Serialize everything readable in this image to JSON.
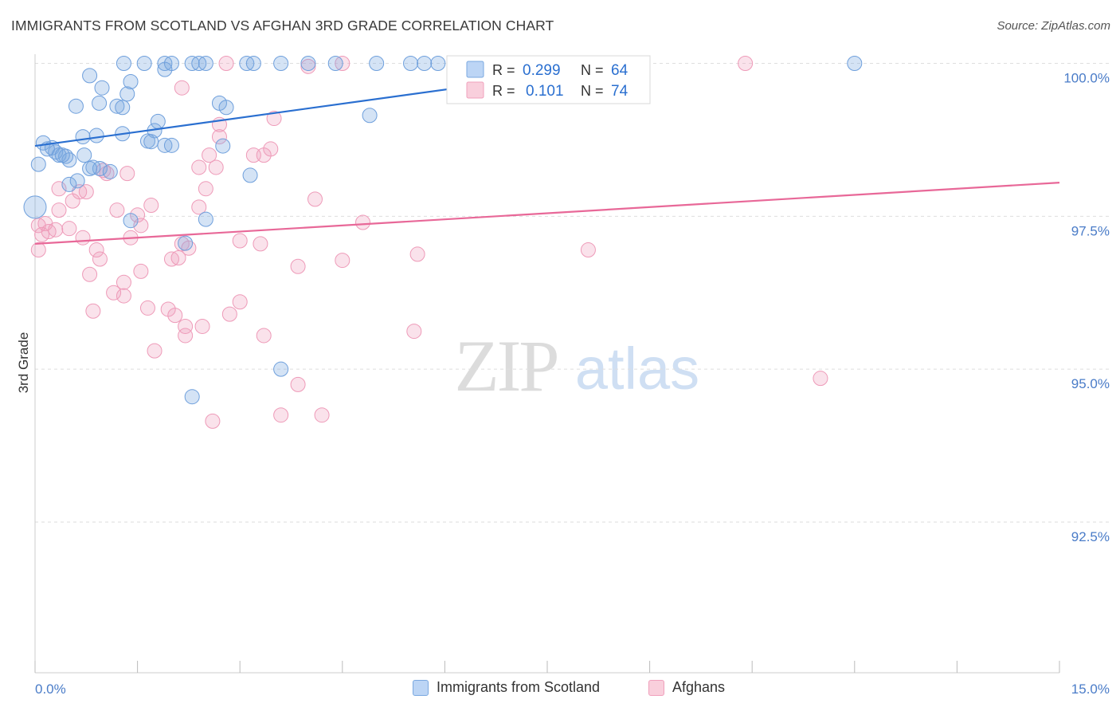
{
  "title": "IMMIGRANTS FROM SCOTLAND VS AFGHAN 3RD GRADE CORRELATION CHART",
  "source": "Source: ZipAtlas.com",
  "watermark": {
    "zip": "ZIP",
    "atlas": "atlas"
  },
  "chart_data": {
    "type": "scatter",
    "title": "IMMIGRANTS FROM SCOTLAND VS AFGHAN 3RD GRADE CORRELATION CHART",
    "xlabel": "",
    "ylabel": "3rd Grade",
    "xlim": [
      0.0,
      15.0
    ],
    "ylim": [
      90.25,
      100.45
    ],
    "x_tick_labels": [
      "0.0%",
      "15.0%"
    ],
    "y_ticks": [
      92.5,
      95.0,
      97.5,
      100.0
    ],
    "y_tick_labels": [
      "92.5%",
      "95.0%",
      "97.5%",
      "100.0%"
    ],
    "grid": true,
    "legend_position": "top-center",
    "colors": {
      "scotland": "#7aa8e0",
      "afghans": "#f0a0bc",
      "scotland_line": "#2a6fd0",
      "afghans_line": "#e86898",
      "stat_value": "#2a6fd0"
    },
    "stats": [
      {
        "r_label": "R =",
        "r_value": "0.299",
        "n_label": "N =",
        "n_value": "64"
      },
      {
        "r_label": "R =",
        "r_value": "0.101",
        "n_label": "N =",
        "n_value": "74"
      }
    ],
    "series": [
      {
        "name": "Immigrants from Scotland",
        "trend": {
          "x": [
            0.0,
            8.8
          ],
          "y": [
            98.65,
            100.0
          ]
        },
        "points": [
          [
            1.3,
            100.0
          ],
          [
            1.6,
            100.0
          ],
          [
            1.9,
            100.0
          ],
          [
            2.0,
            100.0
          ],
          [
            2.3,
            100.0
          ],
          [
            2.4,
            100.0
          ],
          [
            2.5,
            100.0
          ],
          [
            3.1,
            100.0
          ],
          [
            3.2,
            100.0
          ],
          [
            3.6,
            100.0
          ],
          [
            4.0,
            100.0
          ],
          [
            4.4,
            100.0
          ],
          [
            5.0,
            100.0
          ],
          [
            5.5,
            100.0
          ],
          [
            5.7,
            100.0
          ],
          [
            5.9,
            100.0
          ],
          [
            12.0,
            100.0
          ],
          [
            8.8,
            100.0
          ],
          [
            8.4,
            100.0
          ],
          [
            1.9,
            99.9
          ],
          [
            1.4,
            99.7
          ],
          [
            0.8,
            99.8
          ],
          [
            0.98,
            99.6
          ],
          [
            1.35,
            99.5
          ],
          [
            0.6,
            99.3
          ],
          [
            0.94,
            99.35
          ],
          [
            1.2,
            99.3
          ],
          [
            1.28,
            99.28
          ],
          [
            2.7,
            99.35
          ],
          [
            2.8,
            99.28
          ],
          [
            4.9,
            99.15
          ],
          [
            1.8,
            99.05
          ],
          [
            1.75,
            98.9
          ],
          [
            1.28,
            98.85
          ],
          [
            0.7,
            98.8
          ],
          [
            0.9,
            98.82
          ],
          [
            1.65,
            98.73
          ],
          [
            1.7,
            98.72
          ],
          [
            1.9,
            98.66
          ],
          [
            2.0,
            98.66
          ],
          [
            2.75,
            98.65
          ],
          [
            0.12,
            98.7
          ],
          [
            0.25,
            98.62
          ],
          [
            0.3,
            98.55
          ],
          [
            0.35,
            98.5
          ],
          [
            0.45,
            98.48
          ],
          [
            0.5,
            98.42
          ],
          [
            0.72,
            98.5
          ],
          [
            0.85,
            98.3
          ],
          [
            0.95,
            98.28
          ],
          [
            1.1,
            98.23
          ],
          [
            0.05,
            98.35
          ],
          [
            0.62,
            98.08
          ],
          [
            0.5,
            98.02
          ],
          [
            3.15,
            98.17
          ],
          [
            0.0,
            97.65
          ],
          [
            2.5,
            97.45
          ],
          [
            1.4,
            97.43
          ],
          [
            2.2,
            97.06
          ],
          [
            3.6,
            95.0
          ],
          [
            2.3,
            94.55
          ],
          [
            0.18,
            98.6
          ],
          [
            0.8,
            98.28
          ],
          [
            0.4,
            98.5
          ]
        ]
      },
      {
        "name": "Afghans",
        "trend": {
          "x": [
            0.0,
            15.0
          ],
          "y": [
            97.05,
            98.05
          ]
        },
        "points": [
          [
            2.8,
            100.0
          ],
          [
            4.0,
            99.95
          ],
          [
            4.5,
            100.0
          ],
          [
            8.8,
            100.0
          ],
          [
            10.4,
            100.0
          ],
          [
            2.15,
            99.6
          ],
          [
            3.5,
            99.1
          ],
          [
            2.7,
            99.0
          ],
          [
            2.7,
            98.8
          ],
          [
            3.45,
            98.6
          ],
          [
            3.2,
            98.5
          ],
          [
            3.35,
            98.5
          ],
          [
            2.55,
            98.5
          ],
          [
            2.4,
            98.3
          ],
          [
            2.65,
            98.3
          ],
          [
            1.0,
            98.25
          ],
          [
            1.05,
            98.2
          ],
          [
            1.35,
            98.2
          ],
          [
            0.35,
            97.95
          ],
          [
            0.65,
            97.9
          ],
          [
            0.75,
            97.9
          ],
          [
            2.5,
            97.95
          ],
          [
            4.1,
            97.78
          ],
          [
            0.55,
            97.75
          ],
          [
            1.7,
            97.68
          ],
          [
            2.4,
            97.65
          ],
          [
            1.2,
            97.6
          ],
          [
            1.5,
            97.52
          ],
          [
            0.35,
            97.6
          ],
          [
            0.5,
            97.3
          ],
          [
            0.15,
            97.38
          ],
          [
            0.2,
            97.25
          ],
          [
            0.3,
            97.28
          ],
          [
            4.8,
            97.4
          ],
          [
            1.55,
            97.35
          ],
          [
            1.4,
            97.15
          ],
          [
            0.7,
            97.15
          ],
          [
            3.0,
            97.1
          ],
          [
            3.3,
            97.05
          ],
          [
            2.15,
            97.05
          ],
          [
            2.25,
            96.98
          ],
          [
            0.9,
            96.95
          ],
          [
            0.95,
            96.8
          ],
          [
            2.0,
            96.8
          ],
          [
            2.1,
            96.82
          ],
          [
            4.5,
            96.78
          ],
          [
            5.6,
            96.88
          ],
          [
            8.1,
            96.95
          ],
          [
            3.85,
            96.68
          ],
          [
            1.55,
            96.6
          ],
          [
            0.8,
            96.55
          ],
          [
            1.3,
            96.42
          ],
          [
            1.15,
            96.25
          ],
          [
            1.3,
            96.2
          ],
          [
            3.0,
            96.1
          ],
          [
            1.65,
            96.0
          ],
          [
            1.95,
            95.98
          ],
          [
            2.05,
            95.88
          ],
          [
            2.85,
            95.9
          ],
          [
            0.85,
            95.95
          ],
          [
            2.2,
            95.7
          ],
          [
            2.45,
            95.7
          ],
          [
            3.35,
            95.55
          ],
          [
            2.2,
            95.55
          ],
          [
            5.55,
            95.62
          ],
          [
            1.75,
            95.3
          ],
          [
            3.85,
            94.75
          ],
          [
            11.5,
            94.85
          ],
          [
            2.6,
            94.15
          ],
          [
            3.6,
            94.25
          ],
          [
            4.2,
            94.25
          ],
          [
            0.05,
            97.35
          ],
          [
            0.05,
            96.95
          ],
          [
            0.1,
            97.2
          ]
        ]
      }
    ]
  },
  "legend": {
    "items": [
      {
        "label": "Immigrants from Scotland"
      },
      {
        "label": "Afghans"
      }
    ]
  }
}
